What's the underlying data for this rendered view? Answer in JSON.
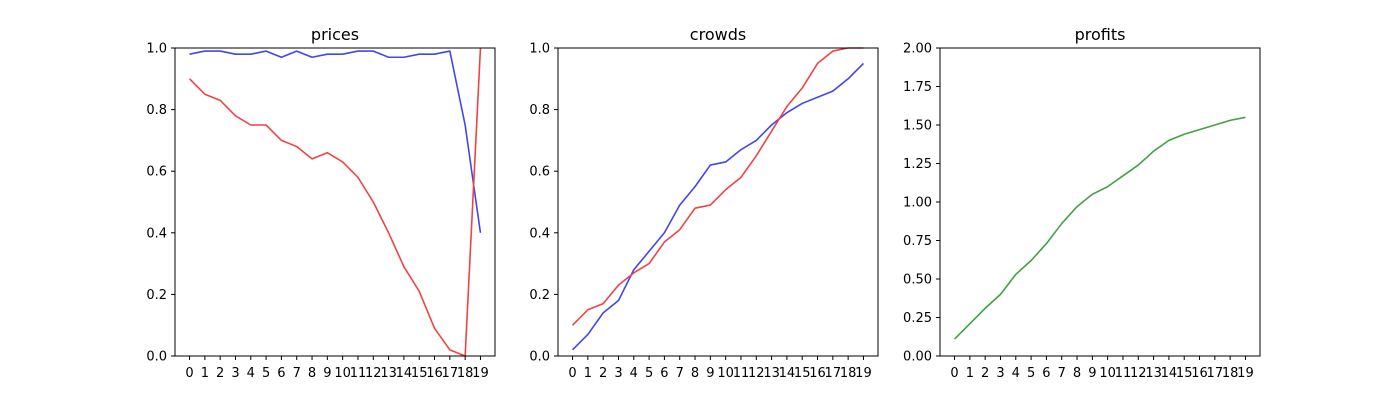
{
  "chart_data": [
    {
      "type": "line",
      "title": "prices",
      "x": [
        0,
        1,
        2,
        3,
        4,
        5,
        6,
        7,
        8,
        9,
        10,
        11,
        12,
        13,
        14,
        15,
        16,
        17,
        18,
        19
      ],
      "ylim": [
        0,
        1.0
      ],
      "yticks": [
        "0.0",
        "0.2",
        "0.4",
        "0.6",
        "0.8",
        "1.0"
      ],
      "series": [
        {
          "color": "#4444ee",
          "values": [
            0.98,
            0.99,
            0.99,
            0.98,
            0.98,
            0.99,
            0.97,
            0.99,
            0.97,
            0.98,
            0.98,
            0.99,
            0.99,
            0.97,
            0.97,
            0.98,
            0.98,
            0.99,
            0.75,
            0.4
          ]
        },
        {
          "color": "#ee4444",
          "values": [
            0.9,
            0.85,
            0.83,
            0.78,
            0.75,
            0.75,
            0.7,
            0.68,
            0.64,
            0.66,
            0.63,
            0.58,
            0.5,
            0.4,
            0.29,
            0.21,
            0.09,
            0.02,
            0.0,
            1.0
          ]
        }
      ]
    },
    {
      "type": "line",
      "title": "crowds",
      "x": [
        0,
        1,
        2,
        3,
        4,
        5,
        6,
        7,
        8,
        9,
        10,
        11,
        12,
        13,
        14,
        15,
        16,
        17,
        18,
        19
      ],
      "ylim": [
        0,
        1.0
      ],
      "yticks": [
        "0.0",
        "0.2",
        "0.4",
        "0.6",
        "0.8",
        "1.0"
      ],
      "series": [
        {
          "color": "#4444ee",
          "values": [
            0.02,
            0.07,
            0.14,
            0.18,
            0.28,
            0.34,
            0.4,
            0.49,
            0.55,
            0.62,
            0.63,
            0.67,
            0.7,
            0.75,
            0.79,
            0.82,
            0.84,
            0.86,
            0.9,
            0.95
          ]
        },
        {
          "color": "#ee4444",
          "values": [
            0.1,
            0.15,
            0.17,
            0.23,
            0.27,
            0.3,
            0.37,
            0.41,
            0.48,
            0.49,
            0.54,
            0.58,
            0.65,
            0.73,
            0.81,
            0.87,
            0.95,
            0.99,
            1.0,
            1.0
          ]
        }
      ]
    },
    {
      "type": "line",
      "title": "profits",
      "x": [
        0,
        1,
        2,
        3,
        4,
        5,
        6,
        7,
        8,
        9,
        10,
        11,
        12,
        13,
        14,
        15,
        16,
        17,
        18,
        19
      ],
      "ylim": [
        0,
        2.0
      ],
      "yticks": [
        "0.00",
        "0.25",
        "0.50",
        "0.75",
        "1.00",
        "1.25",
        "1.50",
        "1.75",
        "2.00"
      ],
      "series": [
        {
          "color": "#44a044",
          "values": [
            0.11,
            0.21,
            0.31,
            0.4,
            0.53,
            0.62,
            0.73,
            0.86,
            0.97,
            1.05,
            1.1,
            1.17,
            1.24,
            1.33,
            1.4,
            1.44,
            1.47,
            1.5,
            1.53,
            1.55
          ]
        }
      ]
    }
  ]
}
